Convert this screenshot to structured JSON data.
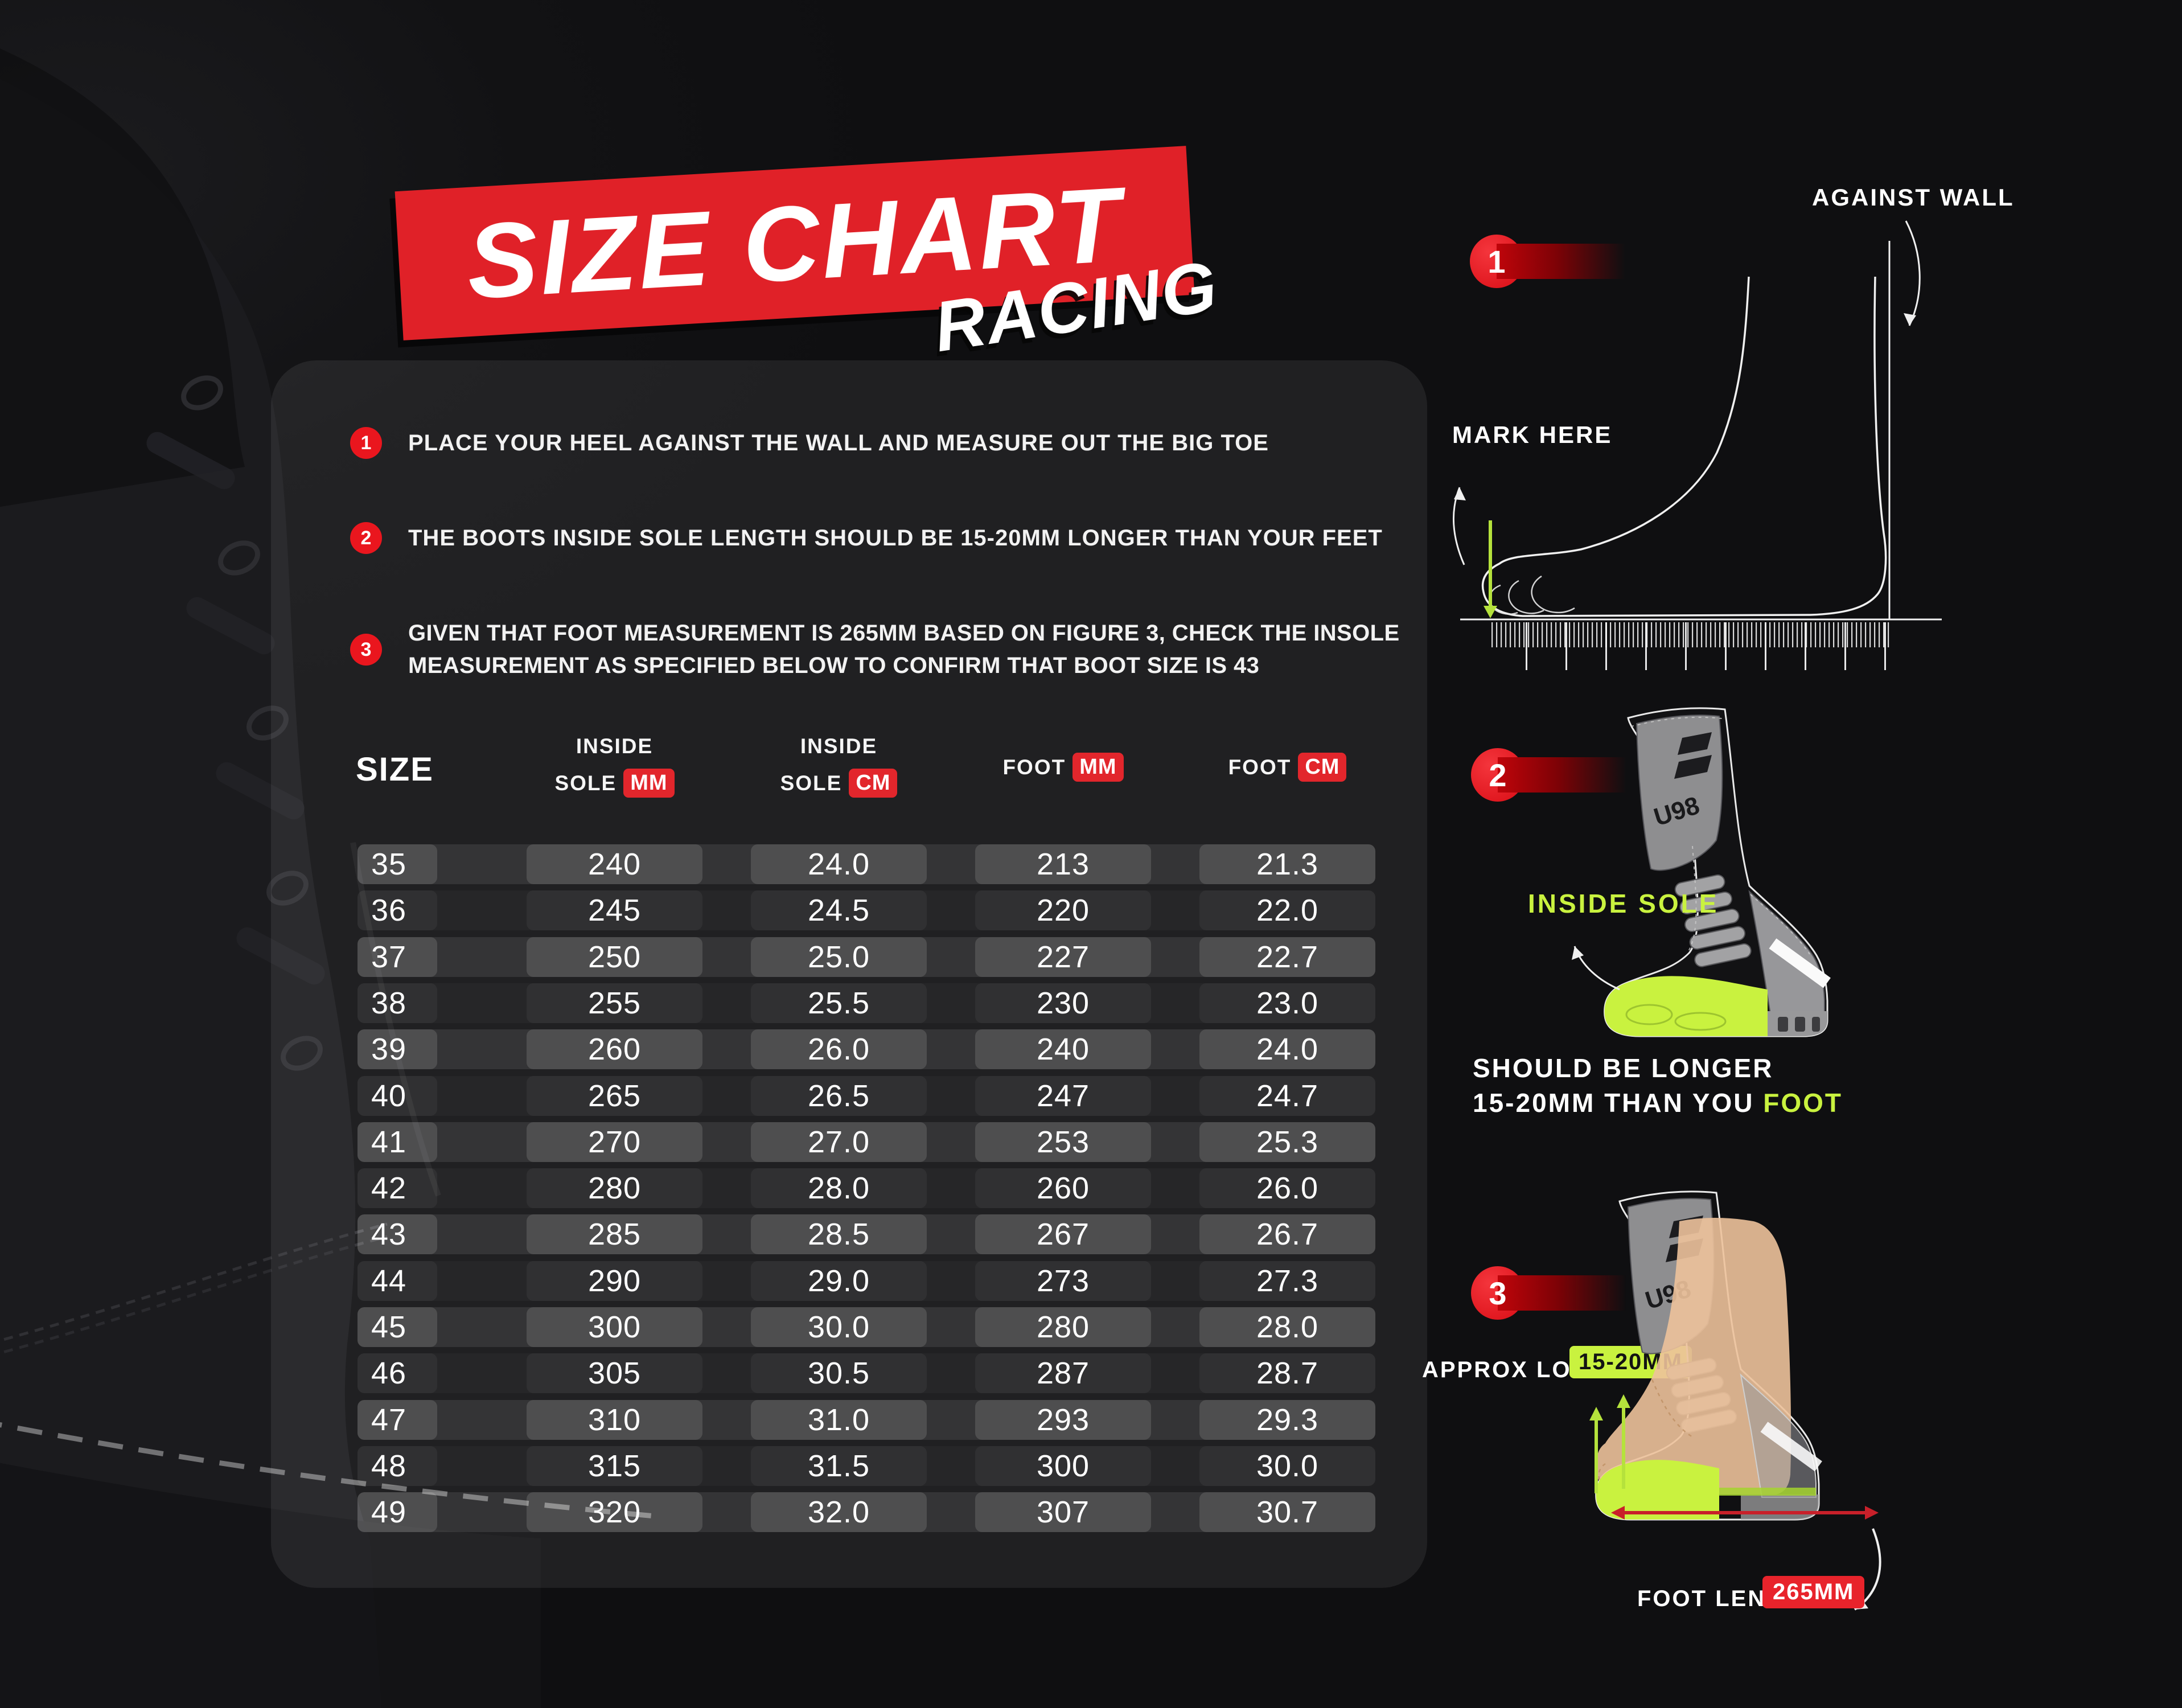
{
  "title": {
    "banner": "SIZE CHART",
    "subtitle": "RACING"
  },
  "instructions": [
    {
      "num": "1",
      "line1": "PLACE YOUR HEEL AGAINST THE WALL AND MEASURE OUT THE BIG TOE",
      "line2": ""
    },
    {
      "num": "2",
      "line1": "THE BOOTS INSIDE SOLE LENGTH SHOULD BE 15-20MM LONGER THAN YOUR FEET",
      "line2": ""
    },
    {
      "num": "3",
      "line1": "GIVEN THAT FOOT MEASUREMENT IS 265MM BASED ON FIGURE 3, CHECK THE INSOLE",
      "line2": "MEASUREMENT AS SPECIFIED BELOW TO CONFIRM THAT BOOT SIZE IS 43"
    }
  ],
  "table": {
    "size_header": "SIZE",
    "headers": [
      {
        "line1": "INSIDE",
        "line2": "SOLE",
        "unit": "MM"
      },
      {
        "line1": "INSIDE",
        "line2": "SOLE",
        "unit": "CM"
      },
      {
        "label": "FOOT",
        "unit": "MM"
      },
      {
        "label": "FOOT",
        "unit": "CM"
      }
    ],
    "rows": [
      [
        "35",
        "240",
        "24.0",
        "213",
        "21.3"
      ],
      [
        "36",
        "245",
        "24.5",
        "220",
        "22.0"
      ],
      [
        "37",
        "250",
        "25.0",
        "227",
        "22.7"
      ],
      [
        "38",
        "255",
        "25.5",
        "230",
        "23.0"
      ],
      [
        "39",
        "260",
        "26.0",
        "240",
        "24.0"
      ],
      [
        "40",
        "265",
        "26.5",
        "247",
        "24.7"
      ],
      [
        "41",
        "270",
        "27.0",
        "253",
        "25.3"
      ],
      [
        "42",
        "280",
        "28.0",
        "260",
        "26.0"
      ],
      [
        "43",
        "285",
        "28.5",
        "267",
        "26.7"
      ],
      [
        "44",
        "290",
        "29.0",
        "273",
        "27.3"
      ],
      [
        "45",
        "300",
        "30.0",
        "280",
        "28.0"
      ],
      [
        "46",
        "305",
        "30.5",
        "287",
        "28.7"
      ],
      [
        "47",
        "310",
        "31.0",
        "293",
        "29.3"
      ],
      [
        "48",
        "315",
        "31.5",
        "300",
        "30.0"
      ],
      [
        "49",
        "320",
        "32.0",
        "307",
        "30.7"
      ]
    ]
  },
  "chart_data": {
    "type": "table",
    "title": "SIZE CHART RACING",
    "columns": [
      "SIZE",
      "INSIDE SOLE MM",
      "INSIDE SOLE CM",
      "FOOT MM",
      "FOOT CM"
    ],
    "rows": [
      [
        35,
        240,
        24.0,
        213,
        21.3
      ],
      [
        36,
        245,
        24.5,
        220,
        22.0
      ],
      [
        37,
        250,
        25.0,
        227,
        22.7
      ],
      [
        38,
        255,
        25.5,
        230,
        23.0
      ],
      [
        39,
        260,
        26.0,
        240,
        24.0
      ],
      [
        40,
        265,
        26.5,
        247,
        24.7
      ],
      [
        41,
        270,
        27.0,
        253,
        25.3
      ],
      [
        42,
        280,
        28.0,
        260,
        26.0
      ],
      [
        43,
        285,
        28.5,
        267,
        26.7
      ],
      [
        44,
        290,
        29.0,
        273,
        27.3
      ],
      [
        45,
        300,
        30.0,
        280,
        28.0
      ],
      [
        46,
        305,
        30.5,
        287,
        28.7
      ],
      [
        47,
        310,
        31.0,
        293,
        29.3
      ],
      [
        48,
        315,
        31.5,
        300,
        30.0
      ],
      [
        49,
        320,
        32.0,
        307,
        30.7
      ]
    ]
  },
  "figures": {
    "fig1": {
      "num": "1",
      "against_wall": "AGAINST WALL",
      "mark_here": "MARK HERE"
    },
    "fig2": {
      "num": "2",
      "inside_sole": "INSIDE SOLE",
      "caption_line1": "SHOULD BE LONGER",
      "caption_line2_white": "15-20MM THAN YOU ",
      "caption_line2_green": "FOOT",
      "boot_logo": "U98"
    },
    "fig3": {
      "num": "3",
      "approx_longer": "APPROX LONGER",
      "approx_badge": "15-20MM",
      "foot_length": "FOOT LENGTH",
      "foot_badge": "265MM",
      "boot_logo": "U98"
    }
  },
  "colors": {
    "background": "#121214",
    "card": "#242427",
    "accent_red": "#e02128",
    "badge_red": "#ea161e",
    "neon_green": "#c9f23f",
    "foot_tan": "#edc29b"
  }
}
